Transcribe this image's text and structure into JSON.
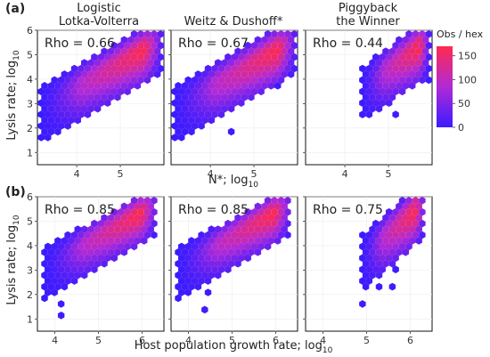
{
  "figure": {
    "row_labels": [
      "(a)",
      "(b)"
    ],
    "col_titles": [
      [
        "Logistic",
        "Lotka-Volterra"
      ],
      [
        "Weitz & Dushoff*"
      ],
      [
        "Piggyback",
        "the Winner"
      ]
    ],
    "ylabel_main": "Lysis rate; log",
    "ylabel_sub": "10",
    "xlabel_row_a_main": "N*; log",
    "xlabel_row_a_sub": "10",
    "xlabel_row_b_main": "Host population growth rate; log",
    "xlabel_row_b_sub": "10",
    "legend_title": "Obs / hex",
    "legend_ticks": [
      150,
      100,
      50,
      0
    ],
    "colors": {
      "low": "#3b1bff",
      "mid": "#b12ad6",
      "high": "#ff2a4f"
    }
  },
  "chart_data": [
    {
      "type": "heatmap",
      "subtype": "hexbin",
      "row": "(a)",
      "title": "Logistic Lotka-Volterra",
      "annotation": "Rho = 0.66",
      "xlabel": "N*; log10",
      "ylabel": "Lysis rate; log10",
      "xlim": [
        3.1,
        6.0
      ],
      "ylim": [
        0.5,
        6.0
      ],
      "xticks": [
        4,
        5
      ],
      "yticks": [
        1,
        2,
        3,
        4,
        5,
        6
      ],
      "trend": {
        "x0": 3.3,
        "y0": 3.0,
        "x1": 5.9,
        "y1": 5.6
      },
      "x_range": [
        3.2,
        5.9
      ],
      "spread": 0.5,
      "max_count": 170
    },
    {
      "type": "heatmap",
      "subtype": "hexbin",
      "row": "(a)",
      "title": "Weitz & Dushoff*",
      "annotation": "Rho = 0.67",
      "xlabel": "N*; log10",
      "ylabel": "Lysis rate; log10",
      "xlim": [
        3.1,
        6.0
      ],
      "ylim": [
        0.5,
        6.0
      ],
      "xticks": [
        4,
        5
      ],
      "yticks": [
        1,
        2,
        3,
        4,
        5,
        6
      ],
      "trend": {
        "x0": 3.3,
        "y0": 3.0,
        "x1": 5.9,
        "y1": 5.6
      },
      "x_range": [
        3.2,
        5.9
      ],
      "spread": 0.5,
      "max_count": 170
    },
    {
      "type": "heatmap",
      "subtype": "hexbin",
      "row": "(a)",
      "title": "Piggyback the Winner",
      "annotation": "Rho = 0.44",
      "xlabel": "N*; log10",
      "ylabel": "Lysis rate; log10",
      "xlim": [
        3.1,
        6.0
      ],
      "ylim": [
        0.5,
        6.0
      ],
      "xticks": [
        4,
        5
      ],
      "yticks": [
        1,
        2,
        3,
        4,
        5,
        6
      ],
      "trend": {
        "x0": 4.3,
        "y0": 3.6,
        "x1": 5.9,
        "y1": 5.6
      },
      "x_range": [
        4.4,
        5.9
      ],
      "spread": 0.5,
      "max_count": 170
    },
    {
      "type": "heatmap",
      "subtype": "hexbin",
      "row": "(b)",
      "title": "Logistic Lotka-Volterra",
      "annotation": "Rho = 0.85",
      "xlabel": "Host population growth rate; log10",
      "ylabel": "Lysis rate; log10",
      "xlim": [
        3.6,
        6.5
      ],
      "ylim": [
        0.5,
        6.0
      ],
      "xticks": [
        4,
        5,
        6
      ],
      "yticks": [
        1,
        2,
        3,
        4,
        5,
        6
      ],
      "trend": {
        "x0": 3.8,
        "y0": 3.2,
        "x1": 6.2,
        "y1": 5.6
      },
      "x_range": [
        3.8,
        6.3
      ],
      "spread": 0.45,
      "max_count": 170
    },
    {
      "type": "heatmap",
      "subtype": "hexbin",
      "row": "(b)",
      "title": "Weitz & Dushoff*",
      "annotation": "Rho = 0.85",
      "xlabel": "Host population growth rate; log10",
      "ylabel": "Lysis rate; log10",
      "xlim": [
        3.6,
        6.5
      ],
      "ylim": [
        0.5,
        6.0
      ],
      "xticks": [
        4,
        5,
        6
      ],
      "yticks": [
        1,
        2,
        3,
        4,
        5,
        6
      ],
      "trend": {
        "x0": 3.8,
        "y0": 3.2,
        "x1": 6.2,
        "y1": 5.6
      },
      "x_range": [
        3.8,
        6.3
      ],
      "spread": 0.45,
      "max_count": 170
    },
    {
      "type": "heatmap",
      "subtype": "hexbin",
      "row": "(b)",
      "title": "Piggyback the Winner",
      "annotation": "Rho = 0.75",
      "xlabel": "Host population growth rate; log10",
      "ylabel": "Lysis rate; log10",
      "xlim": [
        3.6,
        6.5
      ],
      "ylim": [
        0.5,
        6.0
      ],
      "xticks": [
        4,
        5,
        6
      ],
      "yticks": [
        1,
        2,
        3,
        4,
        5,
        6
      ],
      "trend": {
        "x0": 4.9,
        "y0": 3.6,
        "x1": 6.2,
        "y1": 5.6
      },
      "x_range": [
        4.9,
        6.3
      ],
      "spread": 0.5,
      "max_count": 170
    }
  ]
}
